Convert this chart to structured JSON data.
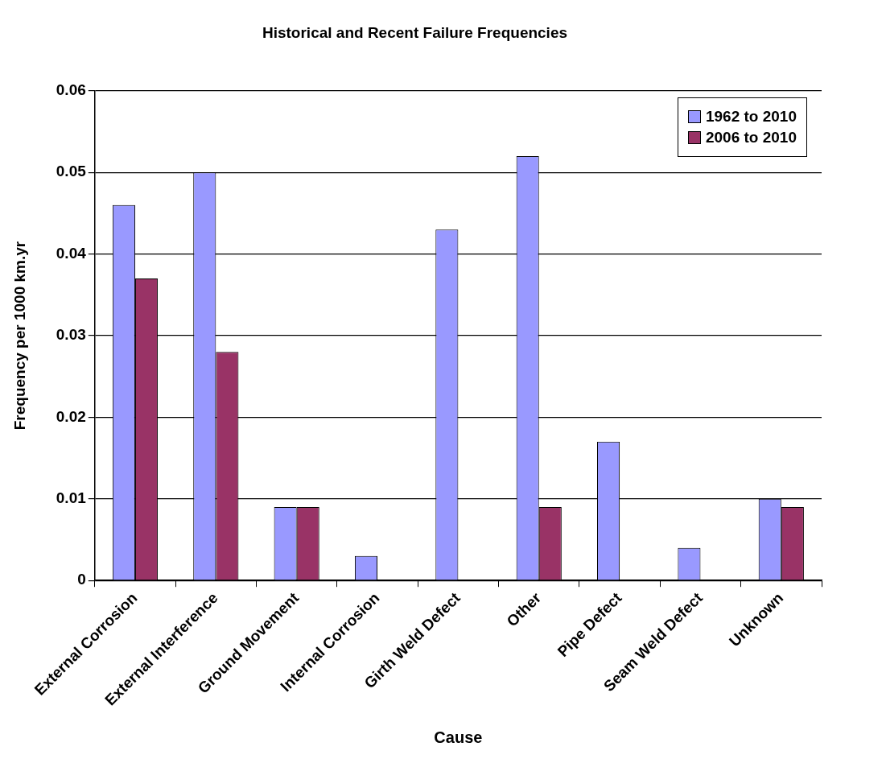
{
  "chart_data": {
    "type": "bar",
    "title": "Historical and Recent Failure Frequencies",
    "xlabel": "Cause",
    "ylabel": "Frequency per 1000 km.yr",
    "categories": [
      "External Corrosion",
      "External Interference",
      "Ground Movement",
      "Internal Corrosion",
      "Girth Weld Defect",
      "Other",
      "Pipe Defect",
      "Seam Weld Defect",
      "Unknown"
    ],
    "series": [
      {
        "name": "1962 to 2010",
        "color": "#9999ff",
        "values": [
          0.046,
          0.05,
          0.009,
          0.003,
          0.043,
          0.052,
          0.017,
          0.004,
          0.01
        ]
      },
      {
        "name": "2006 to 2010",
        "color": "#993366",
        "values": [
          0.037,
          0.028,
          0.009,
          0,
          0,
          0.009,
          0,
          0,
          0.009
        ]
      }
    ],
    "ylim": [
      0,
      0.06
    ],
    "yticks": [
      0,
      0.01,
      0.02,
      0.03,
      0.04,
      0.05,
      0.06
    ],
    "grid": "y",
    "legend": "top right"
  }
}
